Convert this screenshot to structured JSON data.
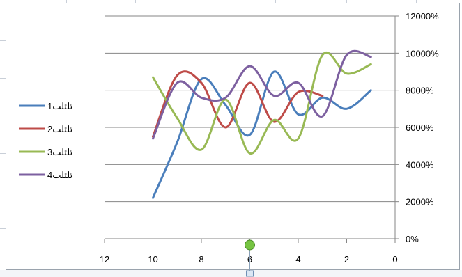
{
  "chart_data": {
    "type": "line",
    "smooth": true,
    "x_axis": {
      "min": 0,
      "max": 12,
      "reversed": true,
      "ticks": [
        12,
        10,
        8,
        6,
        4,
        2,
        0
      ],
      "tick_labels": [
        "12",
        "10",
        "8",
        "6",
        "4",
        "2",
        "0"
      ]
    },
    "y_axis": {
      "min": 0,
      "max": 12000,
      "position": "right",
      "ticks": [
        0,
        2000,
        4000,
        6000,
        8000,
        10000,
        12000
      ],
      "tick_labels": [
        "0%",
        "2000%",
        "4000%",
        "6000%",
        "8000%",
        "10000%",
        "12000%"
      ]
    },
    "grid": true,
    "legend_position": "left",
    "series": [
      {
        "name": "1تلتلت",
        "color": "#4a7ebb",
        "points": [
          [
            10,
            2200
          ],
          [
            9,
            5200
          ],
          [
            8,
            8600
          ],
          [
            7,
            7200
          ],
          [
            6,
            5600
          ],
          [
            5,
            9000
          ],
          [
            4,
            6700
          ],
          [
            3,
            7600
          ],
          [
            2,
            7000
          ],
          [
            1,
            8000
          ]
        ]
      },
      {
        "name": "2تلتلت",
        "color": "#be4b48",
        "points": [
          [
            10,
            5500
          ],
          [
            9,
            8800
          ],
          [
            8,
            8400
          ],
          [
            7,
            6000
          ],
          [
            6,
            8400
          ],
          [
            5,
            6300
          ],
          [
            4,
            7900
          ],
          [
            3,
            7700
          ]
        ]
      },
      {
        "name": "3تلتلت",
        "color": "#98b954",
        "points": [
          [
            10,
            8700
          ],
          [
            9,
            6500
          ],
          [
            8,
            4800
          ],
          [
            7,
            7500
          ],
          [
            6,
            4600
          ],
          [
            5,
            6400
          ],
          [
            4,
            5400
          ],
          [
            3,
            9900
          ],
          [
            2,
            8900
          ],
          [
            1,
            9400
          ]
        ]
      },
      {
        "name": "4تلتلت",
        "color": "#7d60a0",
        "points": [
          [
            10,
            5400
          ],
          [
            9,
            8400
          ],
          [
            8,
            7600
          ],
          [
            7,
            7600
          ],
          [
            6,
            9300
          ],
          [
            5,
            7700
          ],
          [
            4,
            8400
          ],
          [
            3,
            6600
          ],
          [
            2,
            9900
          ],
          [
            1,
            9800
          ]
        ]
      }
    ]
  },
  "selection": {
    "rotation_handle_color": "#76c442"
  }
}
